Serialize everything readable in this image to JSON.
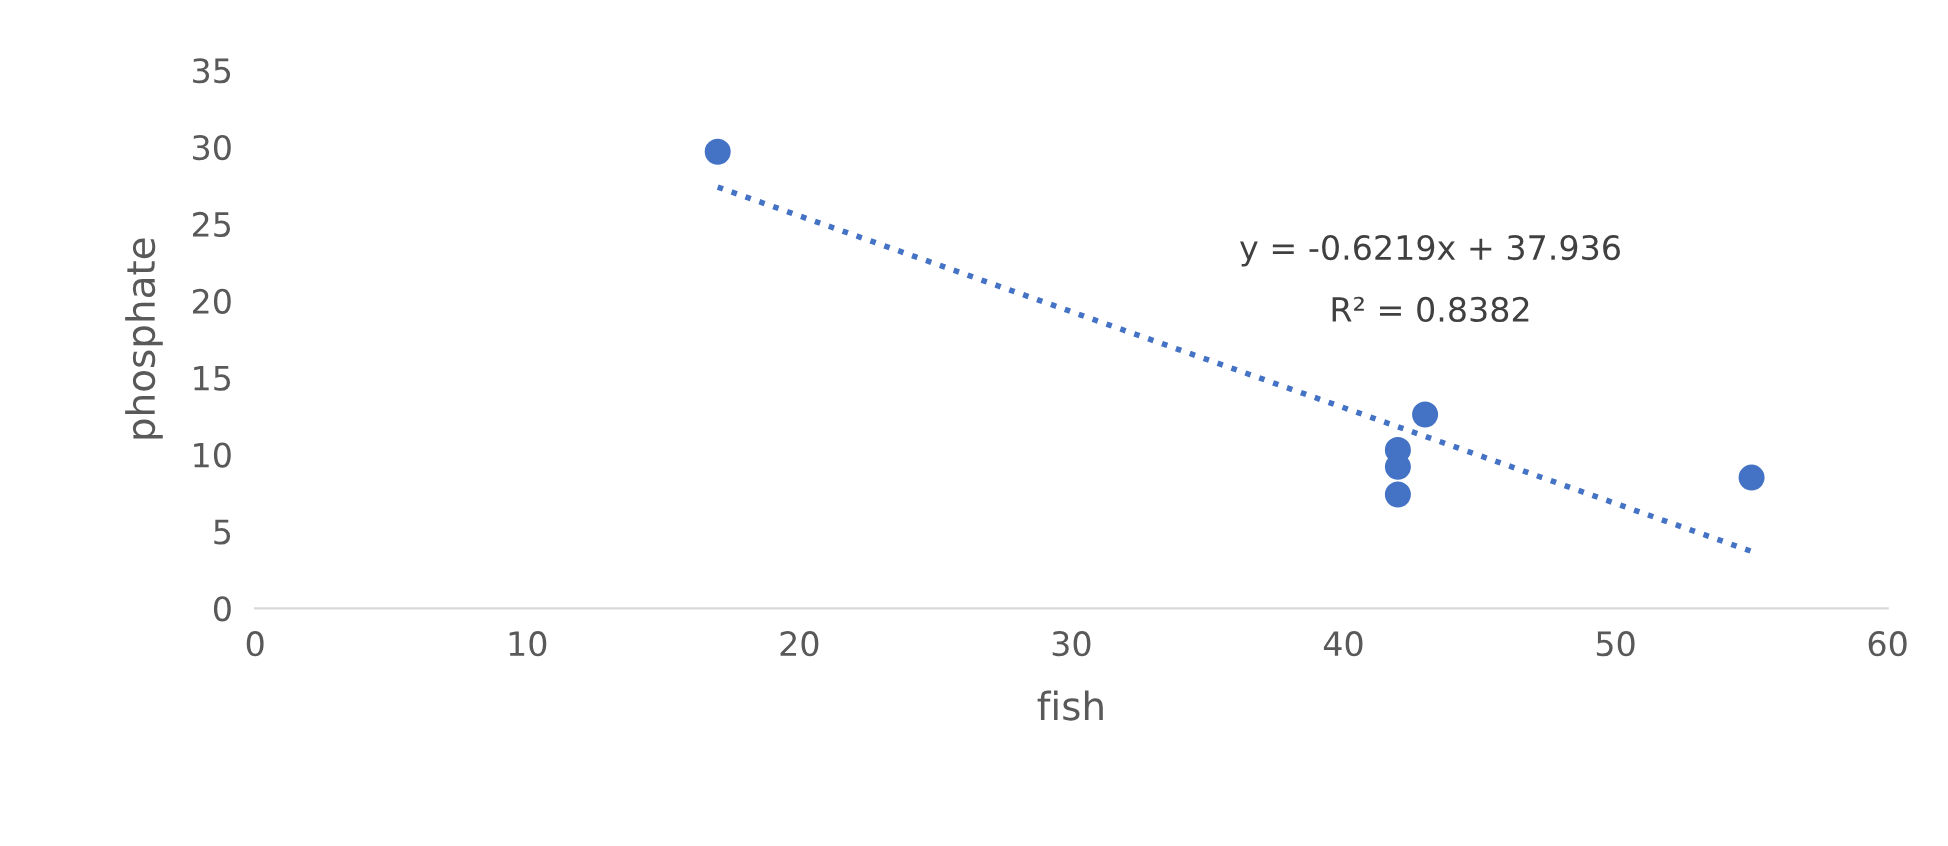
{
  "chart_data": {
    "type": "scatter",
    "xlabel": "fish",
    "ylabel": "phosphate",
    "series": [
      {
        "color": "#4472c4",
        "x": [
          17,
          42,
          42,
          42,
          43,
          55
        ],
        "values": [
          29.7,
          10.3,
          9.2,
          7.4,
          12.6,
          8.5
        ],
        "marker": "circle"
      },
      {
        "type": "line",
        "color": "#4472c4",
        "x": [
          17,
          55
        ],
        "values": [
          27.4,
          3.7
        ],
        "line_style": "dotted"
      }
    ],
    "annotations": [
      "y = -0.6219x + 37.936",
      "R² = 0.8382"
    ],
    "xlim": [
      0,
      60
    ],
    "xticks": [
      0,
      10,
      20,
      30,
      40,
      50,
      60
    ],
    "ylim": [
      0,
      35
    ],
    "yticks": [
      0,
      5,
      10,
      15,
      20,
      25,
      30,
      35
    ],
    "grid": false,
    "legend": false
  }
}
